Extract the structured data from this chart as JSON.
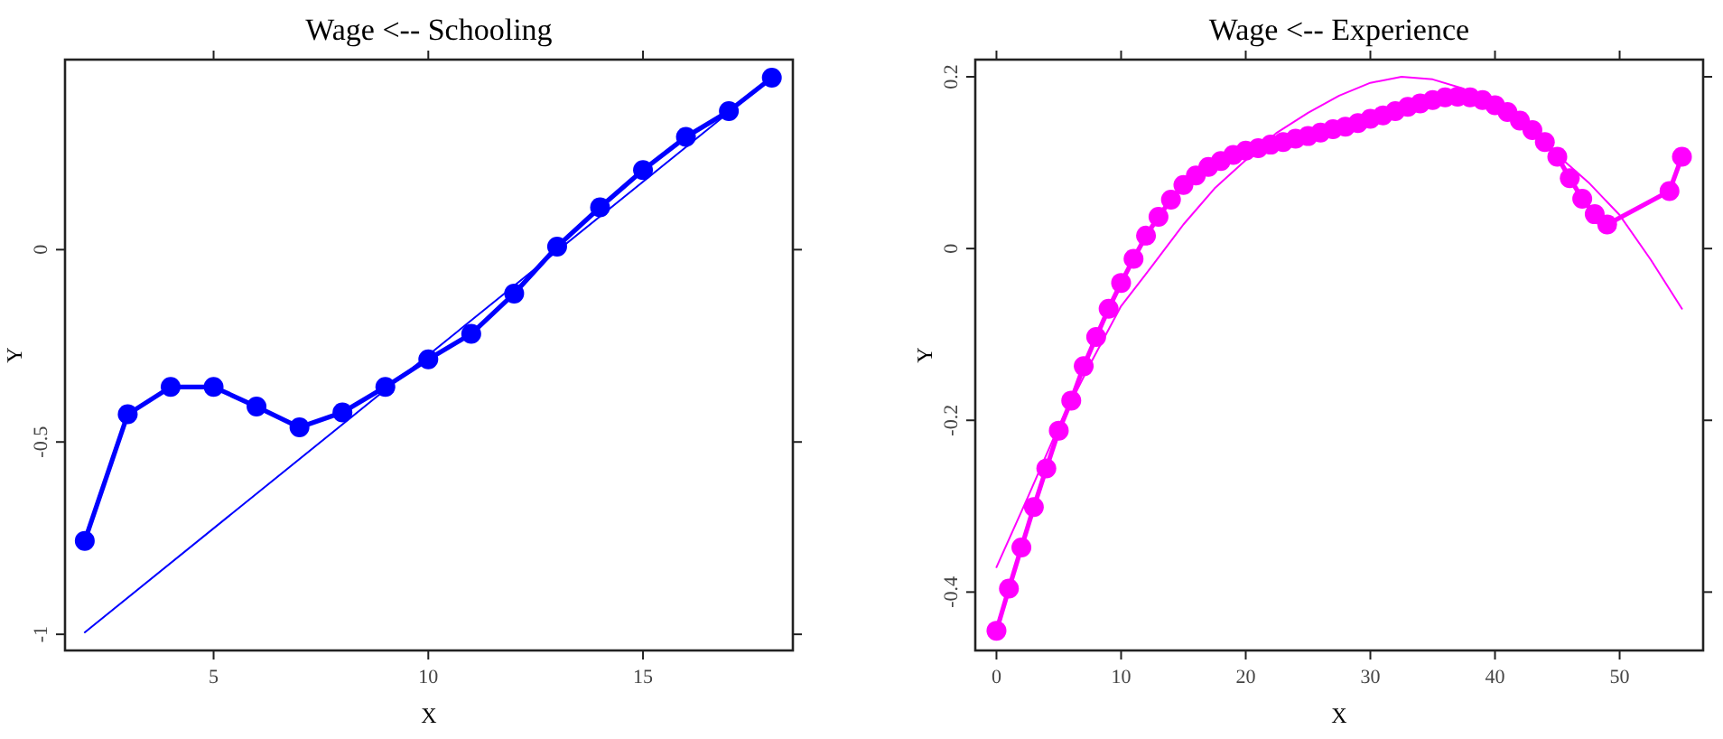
{
  "chart_data": [
    {
      "type": "line",
      "title": "Wage <-- Schooling",
      "xlabel": "X",
      "ylabel": "Y",
      "xlim": [
        1.54,
        18.49
      ],
      "xticks": [
        5,
        10,
        15
      ],
      "ylim": [
        -1.042,
        0.494
      ],
      "yticks": [
        -1,
        -0.5,
        0
      ],
      "grid": false,
      "series": [
        {
          "color": "#0000ff",
          "marker": "circle",
          "x": [
            2,
            3,
            4,
            5,
            6,
            7,
            8,
            9,
            10,
            11,
            12,
            13,
            14,
            15,
            16,
            17,
            18
          ],
          "values": [
            -0.757,
            -0.428,
            -0.357,
            -0.357,
            -0.408,
            -0.462,
            -0.423,
            -0.357,
            -0.285,
            -0.219,
            -0.114,
            0.008,
            0.11,
            0.207,
            0.293,
            0.36,
            0.447
          ]
        },
        {
          "color": "#0000ff",
          "marker": "none",
          "x": [
            2,
            18
          ],
          "values": [
            -0.995,
            0.447
          ]
        }
      ]
    },
    {
      "type": "line",
      "title": "Wage <-- Experience",
      "xlabel": "X",
      "ylabel": "Y",
      "xlim": [
        -1.7,
        56.7
      ],
      "xticks": [
        0,
        10,
        20,
        30,
        40,
        50
      ],
      "ylim": [
        -0.468,
        0.22
      ],
      "yticks": [
        -0.4,
        -0.2,
        0,
        0.2
      ],
      "grid": false,
      "series": [
        {
          "color": "#ff00ff",
          "marker": "circle",
          "x": [
            0,
            1,
            2,
            3,
            4,
            5,
            6,
            7,
            8,
            9,
            10,
            11,
            12,
            13,
            14,
            15,
            16,
            17,
            18,
            19,
            20,
            21,
            22,
            23,
            24,
            25,
            26,
            27,
            28,
            29,
            30,
            31,
            32,
            33,
            34,
            35,
            36,
            37,
            38,
            39,
            40,
            41,
            42,
            43,
            44,
            45,
            46,
            47,
            48,
            49,
            54,
            55
          ],
          "values": [
            -0.445,
            -0.396,
            -0.348,
            -0.301,
            -0.256,
            -0.212,
            -0.177,
            -0.137,
            -0.103,
            -0.07,
            -0.04,
            -0.012,
            0.015,
            0.037,
            0.057,
            0.074,
            0.085,
            0.095,
            0.102,
            0.109,
            0.114,
            0.117,
            0.121,
            0.124,
            0.128,
            0.131,
            0.135,
            0.139,
            0.142,
            0.146,
            0.151,
            0.155,
            0.16,
            0.165,
            0.169,
            0.173,
            0.176,
            0.177,
            0.176,
            0.173,
            0.167,
            0.159,
            0.149,
            0.138,
            0.124,
            0.107,
            0.082,
            0.058,
            0.04,
            0.028,
            0.067,
            0.107
          ]
        },
        {
          "color": "#ff00ff",
          "marker": "none",
          "x": [
            0,
            2.5,
            5,
            7.5,
            10,
            12.5,
            15,
            17.5,
            20,
            22.5,
            25,
            27.5,
            30,
            32.5,
            35,
            37.5,
            40,
            42.5,
            45,
            47.5,
            50,
            52.5,
            55
          ],
          "values": [
            -0.371,
            -0.29,
            -0.207,
            -0.135,
            -0.067,
            -0.02,
            0.028,
            0.07,
            0.103,
            0.135,
            0.158,
            0.178,
            0.193,
            0.2,
            0.197,
            0.186,
            0.165,
            0.14,
            0.109,
            0.077,
            0.039,
            -0.013,
            -0.07
          ]
        }
      ]
    }
  ]
}
